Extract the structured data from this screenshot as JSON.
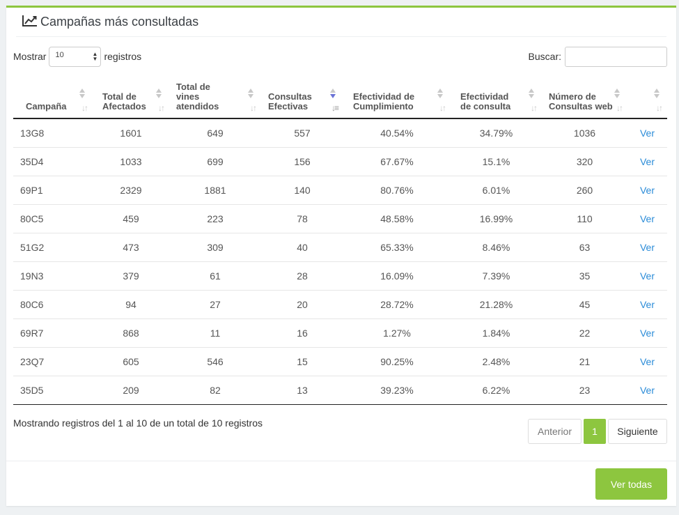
{
  "panel": {
    "title": "Campañas más consultadas",
    "icon": "line-chart-icon",
    "accent": "#8dc63f"
  },
  "controls": {
    "length_prefix": "Mostrar",
    "length_value": "10",
    "length_suffix": "registros",
    "search_label": "Buscar:",
    "search_value": ""
  },
  "table": {
    "headers": [
      "Campaña",
      "Total de Afectados",
      "Total de vines atendidos",
      "Consultas Efectivas",
      "Efectividad de Cumplimiento",
      "Efectividad de consulta",
      "Número de Consultas web",
      ""
    ],
    "sorted_column": 3,
    "rows": [
      [
        "13G8",
        "1601",
        "649",
        "557",
        "40.54%",
        "34.79%",
        "1036",
        "Ver"
      ],
      [
        "35D4",
        "1033",
        "699",
        "156",
        "67.67%",
        "15.1%",
        "320",
        "Ver"
      ],
      [
        "69P1",
        "2329",
        "1881",
        "140",
        "80.76%",
        "6.01%",
        "260",
        "Ver"
      ],
      [
        "80C5",
        "459",
        "223",
        "78",
        "48.58%",
        "16.99%",
        "110",
        "Ver"
      ],
      [
        "51G2",
        "473",
        "309",
        "40",
        "65.33%",
        "8.46%",
        "63",
        "Ver"
      ],
      [
        "19N3",
        "379",
        "61",
        "28",
        "16.09%",
        "7.39%",
        "35",
        "Ver"
      ],
      [
        "80C6",
        "94",
        "27",
        "20",
        "28.72%",
        "21.28%",
        "45",
        "Ver"
      ],
      [
        "69R7",
        "868",
        "11",
        "16",
        "1.27%",
        "1.84%",
        "22",
        "Ver"
      ],
      [
        "23Q7",
        "605",
        "546",
        "15",
        "90.25%",
        "2.48%",
        "21",
        "Ver"
      ],
      [
        "35D5",
        "209",
        "82",
        "13",
        "39.23%",
        "6.22%",
        "23",
        "Ver"
      ]
    ]
  },
  "info_text": "Mostrando registros del 1 al 10 de un total de 10 registros",
  "pagination": {
    "prev": "Anterior",
    "current": "1",
    "next": "Siguiente"
  },
  "footer": {
    "view_all": "Ver todas"
  }
}
